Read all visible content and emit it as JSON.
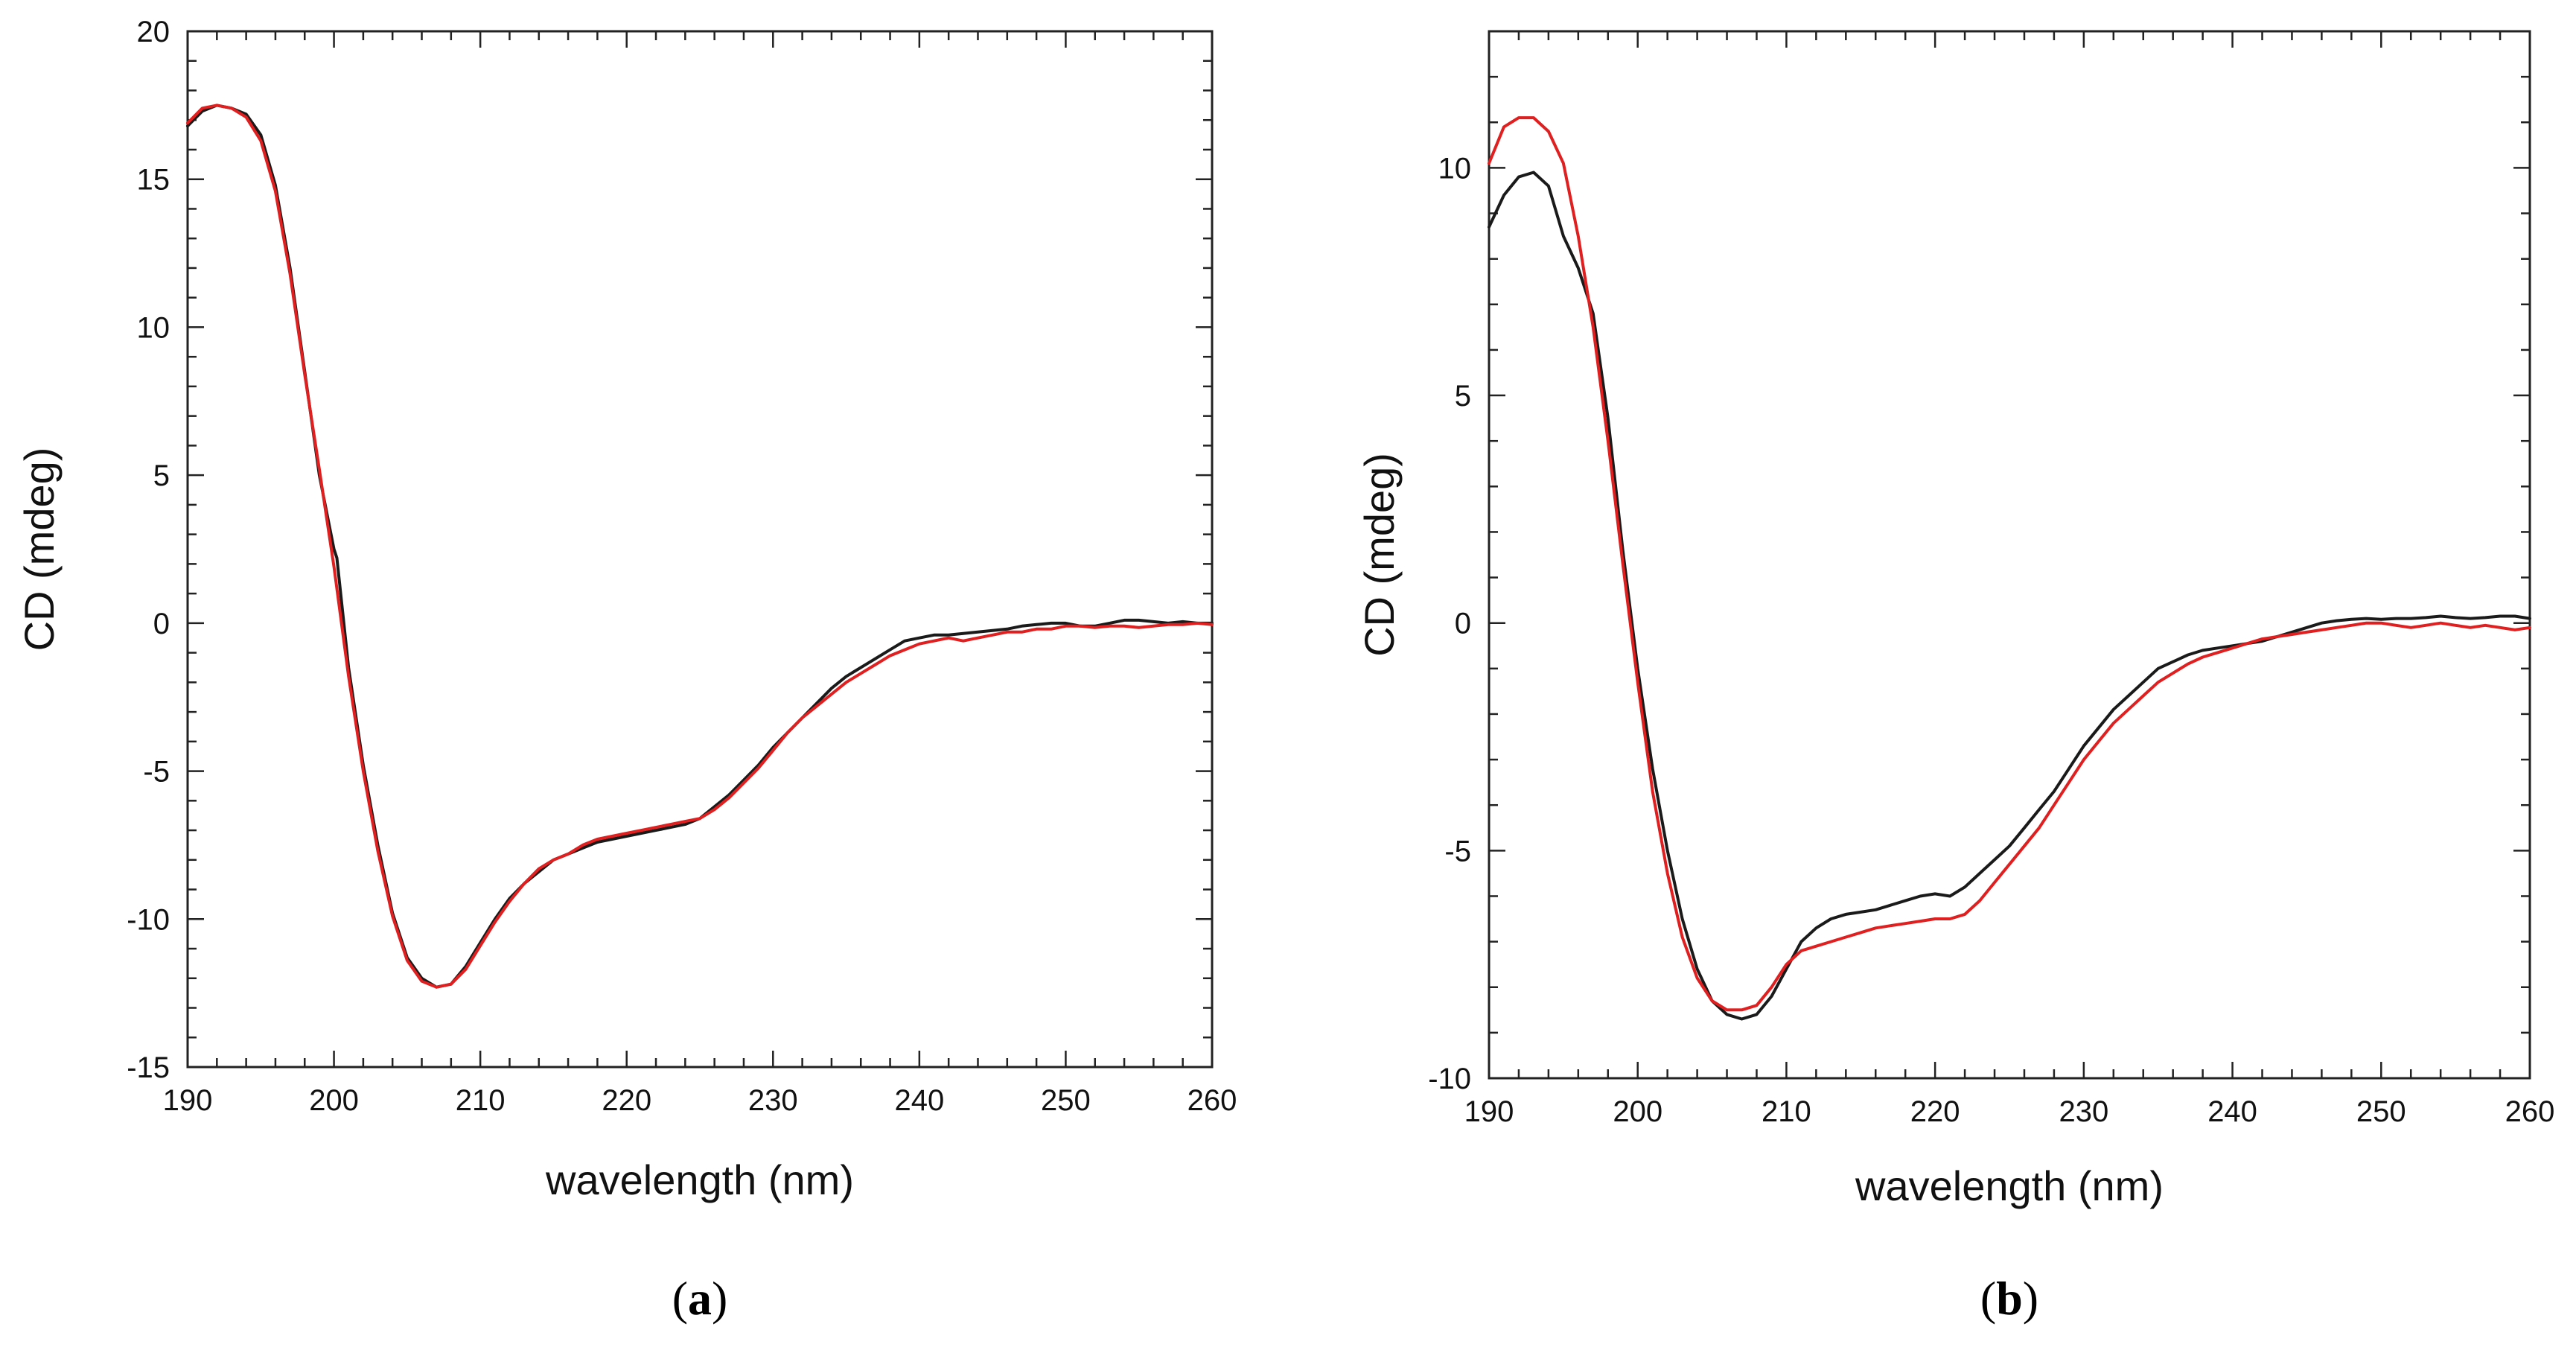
{
  "chart_data": [
    {
      "type": "line",
      "panel_label": "a",
      "xlabel": "wavelength (nm)",
      "ylabel": "CD (mdeg)",
      "xlim": [
        190,
        260
      ],
      "ylim": [
        -15,
        20
      ],
      "x_ticks": [
        190,
        200,
        210,
        220,
        230,
        240,
        250,
        260
      ],
      "y_ticks": [
        -15,
        -10,
        -5,
        0,
        5,
        10,
        15,
        20
      ],
      "grid": false,
      "series": [
        {
          "name": "black",
          "color": "#1a1a1a",
          "x": [
            190,
            191,
            192,
            193,
            194,
            195,
            196,
            197,
            198,
            199,
            200,
            200.2,
            201,
            202,
            203,
            204,
            205,
            206,
            207,
            208,
            209,
            210,
            211,
            212,
            213,
            214,
            215,
            216,
            217,
            218,
            219,
            220,
            221,
            222,
            223,
            224,
            225,
            226,
            227,
            228,
            229,
            230,
            231,
            232,
            233,
            234,
            235,
            236,
            237,
            238,
            239,
            240,
            241,
            242,
            243,
            244,
            245,
            246,
            247,
            248,
            249,
            250,
            251,
            252,
            253,
            254,
            255,
            256,
            257,
            258,
            259,
            260
          ],
          "y": [
            16.8,
            17.3,
            17.5,
            17.4,
            17.2,
            16.5,
            14.8,
            12.0,
            8.5,
            5.0,
            2.5,
            2.2,
            -1.5,
            -4.8,
            -7.5,
            -9.8,
            -11.3,
            -12.0,
            -12.3,
            -12.2,
            -11.6,
            -10.8,
            -10.0,
            -9.3,
            -8.8,
            -8.4,
            -8.0,
            -7.8,
            -7.6,
            -7.4,
            -7.3,
            -7.2,
            -7.1,
            -7.0,
            -6.9,
            -6.8,
            -6.6,
            -6.2,
            -5.8,
            -5.3,
            -4.8,
            -4.2,
            -3.7,
            -3.2,
            -2.7,
            -2.2,
            -1.8,
            -1.5,
            -1.2,
            -0.9,
            -0.6,
            -0.5,
            -0.4,
            -0.4,
            -0.35,
            -0.3,
            -0.25,
            -0.2,
            -0.1,
            -0.05,
            0.0,
            0.0,
            -0.1,
            -0.1,
            0.0,
            0.1,
            0.1,
            0.05,
            0.0,
            0.05,
            0.0,
            0.0
          ]
        },
        {
          "name": "red",
          "color": "#e02020",
          "x": [
            190,
            191,
            192,
            193,
            194,
            195,
            196,
            197,
            198,
            199,
            200,
            201,
            202,
            203,
            204,
            205,
            206,
            207,
            208,
            209,
            210,
            211,
            212,
            213,
            214,
            215,
            216,
            217,
            218,
            219,
            220,
            221,
            222,
            223,
            224,
            225,
            226,
            227,
            228,
            229,
            230,
            231,
            232,
            233,
            234,
            235,
            236,
            237,
            238,
            239,
            240,
            241,
            242,
            243,
            244,
            245,
            246,
            247,
            248,
            249,
            250,
            251,
            252,
            253,
            254,
            255,
            256,
            257,
            258,
            259,
            260
          ],
          "y": [
            16.9,
            17.4,
            17.5,
            17.4,
            17.1,
            16.3,
            14.6,
            11.8,
            8.4,
            5.2,
            1.9,
            -1.8,
            -5.0,
            -7.7,
            -9.9,
            -11.4,
            -12.1,
            -12.3,
            -12.2,
            -11.7,
            -10.9,
            -10.1,
            -9.4,
            -8.8,
            -8.3,
            -8.0,
            -7.8,
            -7.5,
            -7.3,
            -7.2,
            -7.1,
            -7.0,
            -6.9,
            -6.8,
            -6.7,
            -6.6,
            -6.3,
            -5.9,
            -5.4,
            -4.9,
            -4.3,
            -3.7,
            -3.2,
            -2.8,
            -2.4,
            -2.0,
            -1.7,
            -1.4,
            -1.1,
            -0.9,
            -0.7,
            -0.6,
            -0.5,
            -0.6,
            -0.5,
            -0.4,
            -0.3,
            -0.3,
            -0.2,
            -0.2,
            -0.1,
            -0.1,
            -0.15,
            -0.1,
            -0.1,
            -0.15,
            -0.1,
            -0.05,
            -0.05,
            0.0,
            -0.05
          ]
        }
      ]
    },
    {
      "type": "line",
      "panel_label": "b",
      "xlabel": "wavelength (nm)",
      "ylabel": "CD (mdeg)",
      "xlim": [
        190,
        260
      ],
      "ylim": [
        -10,
        13
      ],
      "x_ticks": [
        190,
        200,
        210,
        220,
        230,
        240,
        250,
        260
      ],
      "y_ticks": [
        -10,
        -5,
        0,
        5,
        10
      ],
      "grid": false,
      "series": [
        {
          "name": "black",
          "color": "#1a1a1a",
          "x": [
            190,
            191,
            192,
            193,
            194,
            195,
            196,
            197,
            198,
            199,
            200,
            201,
            202,
            203,
            204,
            205,
            206,
            207,
            208,
            209,
            210,
            211,
            212,
            213,
            214,
            215,
            216,
            217,
            218,
            219,
            220,
            221,
            222,
            223,
            224,
            225,
            226,
            227,
            228,
            229,
            230,
            231,
            232,
            233,
            234,
            235,
            236,
            237,
            238,
            239,
            240,
            241,
            242,
            243,
            244,
            245,
            246,
            247,
            248,
            249,
            250,
            251,
            252,
            253,
            254,
            255,
            256,
            257,
            258,
            259,
            260
          ],
          "y": [
            8.7,
            9.4,
            9.8,
            9.9,
            9.6,
            8.5,
            7.8,
            6.8,
            4.5,
            1.6,
            -1.0,
            -3.2,
            -5.0,
            -6.5,
            -7.6,
            -8.3,
            -8.6,
            -8.7,
            -8.6,
            -8.2,
            -7.6,
            -7.0,
            -6.7,
            -6.5,
            -6.4,
            -6.35,
            -6.3,
            -6.2,
            -6.1,
            -6.0,
            -5.95,
            -6.0,
            -5.8,
            -5.5,
            -5.2,
            -4.9,
            -4.5,
            -4.1,
            -3.7,
            -3.2,
            -2.7,
            -2.3,
            -1.9,
            -1.6,
            -1.3,
            -1.0,
            -0.85,
            -0.7,
            -0.6,
            -0.55,
            -0.5,
            -0.45,
            -0.4,
            -0.3,
            -0.2,
            -0.1,
            0.0,
            0.05,
            0.08,
            0.1,
            0.08,
            0.1,
            0.1,
            0.12,
            0.15,
            0.12,
            0.1,
            0.12,
            0.15,
            0.15,
            0.1
          ]
        },
        {
          "name": "red",
          "color": "#e02020",
          "x": [
            190,
            191,
            192,
            193,
            194,
            195,
            196,
            197,
            198,
            199,
            200,
            201,
            202,
            203,
            204,
            205,
            206,
            207,
            208,
            209,
            210,
            211,
            212,
            213,
            214,
            215,
            216,
            217,
            218,
            219,
            220,
            221,
            222,
            223,
            224,
            225,
            226,
            227,
            228,
            229,
            230,
            231,
            232,
            233,
            234,
            235,
            236,
            237,
            238,
            239,
            240,
            241,
            242,
            243,
            244,
            245,
            246,
            247,
            248,
            249,
            250,
            251,
            252,
            253,
            254,
            255,
            256,
            257,
            258,
            259,
            260
          ],
          "y": [
            10.1,
            10.9,
            11.1,
            11.1,
            10.8,
            10.1,
            8.5,
            6.5,
            4.0,
            1.3,
            -1.3,
            -3.7,
            -5.5,
            -6.9,
            -7.8,
            -8.3,
            -8.5,
            -8.5,
            -8.4,
            -8.0,
            -7.5,
            -7.2,
            -7.1,
            -7.0,
            -6.9,
            -6.8,
            -6.7,
            -6.65,
            -6.6,
            -6.55,
            -6.5,
            -6.5,
            -6.4,
            -6.1,
            -5.7,
            -5.3,
            -4.9,
            -4.5,
            -4.0,
            -3.5,
            -3.0,
            -2.6,
            -2.2,
            -1.9,
            -1.6,
            -1.3,
            -1.1,
            -0.9,
            -0.75,
            -0.65,
            -0.55,
            -0.45,
            -0.35,
            -0.3,
            -0.25,
            -0.2,
            -0.15,
            -0.1,
            -0.05,
            0.0,
            0.0,
            -0.05,
            -0.1,
            -0.05,
            0.0,
            -0.05,
            -0.1,
            -0.05,
            -0.1,
            -0.15,
            -0.1
          ]
        }
      ]
    }
  ]
}
